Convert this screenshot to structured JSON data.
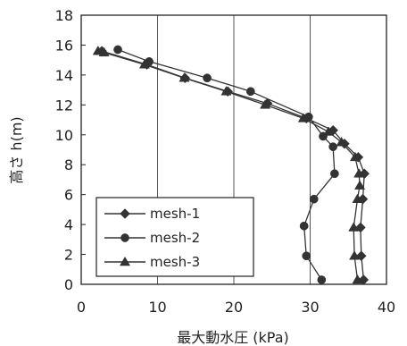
{
  "chart_data": {
    "type": "line",
    "xlabel": "最大動水圧 (kPa)",
    "ylabel": "高さ h(m)",
    "xlim": [
      0,
      40
    ],
    "ylim": [
      0,
      18
    ],
    "x_ticks": [
      0,
      10,
      20,
      30,
      40
    ],
    "y_ticks": [
      0,
      2,
      4,
      6,
      8,
      10,
      12,
      14,
      16,
      18
    ],
    "x_tick_labels": [
      "0",
      "10",
      "20",
      "30",
      "40"
    ],
    "y_tick_labels": [
      "0",
      "2",
      "4",
      "6",
      "8",
      "10",
      "12",
      "14",
      "16",
      "18"
    ],
    "grid": "vertical gridlines at x ticks",
    "legend_position": "lower-left",
    "series": [
      {
        "name": "mesh-1",
        "marker": "diamond",
        "points": [
          {
            "x": 37.0,
            "y": 0.3
          },
          {
            "x": 36.7,
            "y": 1.9
          },
          {
            "x": 36.6,
            "y": 3.8
          },
          {
            "x": 36.9,
            "y": 5.7
          },
          {
            "x": 37.1,
            "y": 7.4
          },
          {
            "x": 36.3,
            "y": 8.5
          },
          {
            "x": 34.5,
            "y": 9.4
          },
          {
            "x": 33.0,
            "y": 10.3
          },
          {
            "x": 29.5,
            "y": 11.1
          },
          {
            "x": 24.4,
            "y": 12.1
          },
          {
            "x": 19.2,
            "y": 12.9
          },
          {
            "x": 13.6,
            "y": 13.8
          },
          {
            "x": 8.6,
            "y": 14.7
          },
          {
            "x": 2.7,
            "y": 15.6
          }
        ]
      },
      {
        "name": "mesh-2",
        "marker": "circle",
        "points": [
          {
            "x": 31.5,
            "y": 0.3
          },
          {
            "x": 29.5,
            "y": 1.9
          },
          {
            "x": 29.2,
            "y": 3.9
          },
          {
            "x": 30.5,
            "y": 5.7
          },
          {
            "x": 33.2,
            "y": 7.4
          },
          {
            "x": 33.0,
            "y": 9.2
          },
          {
            "x": 31.7,
            "y": 9.9
          },
          {
            "x": 29.8,
            "y": 11.2
          },
          {
            "x": 22.2,
            "y": 12.9
          },
          {
            "x": 16.5,
            "y": 13.8
          },
          {
            "x": 8.9,
            "y": 14.9
          },
          {
            "x": 4.8,
            "y": 15.7
          }
        ]
      },
      {
        "name": "mesh-3",
        "marker": "triangle",
        "points": [
          {
            "x": 36.2,
            "y": 0.3
          },
          {
            "x": 35.8,
            "y": 1.9
          },
          {
            "x": 35.7,
            "y": 3.8
          },
          {
            "x": 36.2,
            "y": 5.7
          },
          {
            "x": 36.5,
            "y": 6.6
          },
          {
            "x": 36.4,
            "y": 7.4
          },
          {
            "x": 35.9,
            "y": 8.5
          },
          {
            "x": 34.1,
            "y": 9.5
          },
          {
            "x": 32.4,
            "y": 10.2
          },
          {
            "x": 29.1,
            "y": 11.1
          },
          {
            "x": 24.1,
            "y": 12.0
          },
          {
            "x": 19.0,
            "y": 12.9
          },
          {
            "x": 13.5,
            "y": 13.8
          },
          {
            "x": 8.3,
            "y": 14.7
          },
          {
            "x": 3.0,
            "y": 15.5
          },
          {
            "x": 2.2,
            "y": 15.6
          }
        ]
      }
    ],
    "colors": {
      "series": "#333333",
      "axis": "#222222",
      "grid": "#555555"
    }
  }
}
